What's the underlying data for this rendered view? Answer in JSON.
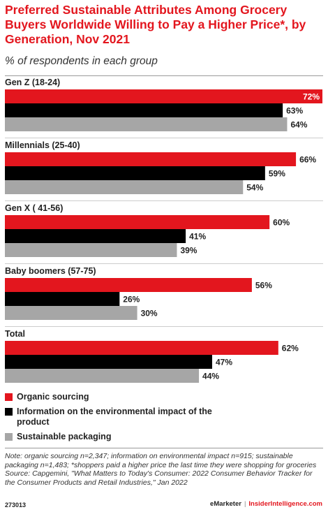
{
  "title": "Preferred Sustainable Attributes Among Grocery Buyers Worldwide Willing to Pay a Higher Price*, by Generation, Nov 2021",
  "subtitle": "% of respondents in each group",
  "chart_data": {
    "type": "bar",
    "orientation": "horizontal",
    "categories": [
      "Gen Z (18-24)",
      "Millennials (25-40)",
      "Gen X ( 41-56)",
      "Baby boomers (57-75)",
      "Total"
    ],
    "series": [
      {
        "name": "Organic sourcing",
        "color": "#e3161e",
        "values": [
          72,
          66,
          60,
          56,
          62
        ]
      },
      {
        "name": "Information on the environmental impact of the product",
        "color": "#000000",
        "values": [
          63,
          59,
          41,
          26,
          47
        ]
      },
      {
        "name": "Sustainable packaging",
        "color": "#a6a6a6",
        "values": [
          64,
          54,
          39,
          30,
          44
        ]
      }
    ],
    "value_suffix": "%",
    "xlim": [
      0,
      72
    ],
    "grid": false,
    "legend_position": "bottom-left"
  },
  "legend": {
    "items": [
      {
        "label": "Organic sourcing",
        "color": "#e3161e"
      },
      {
        "label": "Information on the environmental impact of the product",
        "color": "#000000"
      },
      {
        "label": "Sustainable packaging",
        "color": "#a6a6a6"
      }
    ]
  },
  "note": "Note: organic sourcing n=2,347; information on environmental impact n=915; sustainable packaging n=1,483; *shoppers paid a higher price the last time they were shopping for groceries",
  "source": "Source: Capgemini, \"What Matters to Today's Consumer: 2022 Consumer Behavior Tracker for the Consumer Products and Retail Industries,\" Jan 2022",
  "footer": {
    "chart_id": "273013",
    "brand": "eMarketer",
    "separator": "|",
    "brand2": "InsiderIntelligence.com"
  }
}
